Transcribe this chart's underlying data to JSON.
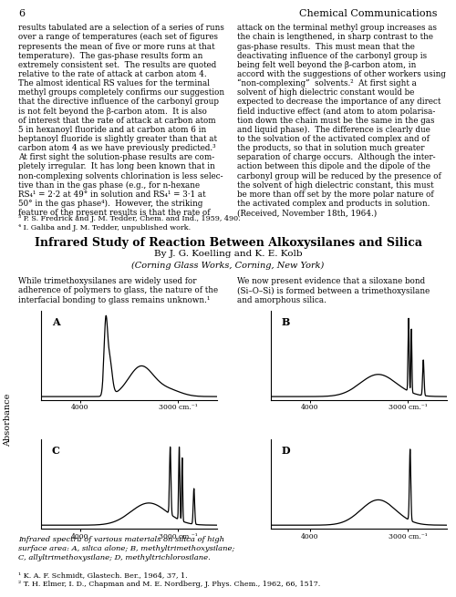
{
  "page_number": "6",
  "journal_header": "Chemical Communications",
  "body_text_left": [
    "results tabulated are a selection of a series of runs",
    "over a range of temperatures (each set of figures",
    "represents the mean of five or more runs at that",
    "temperature).  The gas-phase results form an",
    "extremely consistent set.  The results are quoted",
    "relative to the rate of attack at carbon atom 4.",
    "The almost identical RS values for the terminal",
    "methyl groups completely confirms our suggestion",
    "that the directive influence of the carbonyl group",
    "is not felt beyond the β-carbon atom.  It is also",
    "of interest that the rate of attack at carbon atom",
    "5 in hexanoyl fluoride and at carbon atom 6 in",
    "heptanoyl fluoride is slightly greater than that at",
    "carbon atom 4 as we have previously predicted.³",
    "At first sight the solution-phase results are com-",
    "pletely irregular.  It has long been known that in",
    "non-complexing solvents chlorination is less selec-",
    "tive than in the gas phase (e.g., for n-hexane",
    "RS₄¹ = 2·2 at 49° in solution and RS₄¹ = 3·1 at",
    "50° in the gas phase⁴).  However, the striking",
    "feature of the present results is that the rate of"
  ],
  "body_text_right": [
    "attack on the terminal methyl group increases as",
    "the chain is lengthened, in sharp contrast to the",
    "gas-phase results.  This must mean that the",
    "deactivating influence of the carbonyl group is",
    "being felt well beyond the β-carbon atom, in",
    "accord with the suggestions of other workers using",
    "“non-complexing”  solvents.²  At first sight a",
    "solvent of high dielectric constant would be",
    "expected to decrease the importance of any direct",
    "field inductive effect (and atom to atom polarisa-",
    "tion down the chain must be the same in the gas",
    "and liquid phase).  The difference is clearly due",
    "to the solvation of the activated complex and of",
    "the products, so that in solution much greater",
    "separation of charge occurs.  Although the inter-",
    "action between this dipole and the dipole of the",
    "carbonyl group will be reduced by the presence of",
    "the solvent of high dielectric constant, this must",
    "be more than off set by the more polar nature of",
    "the activated complex and products in solution.",
    "(Received, November 18th, 1964.)"
  ],
  "footnotes_top": [
    "³ P. S. Fredrick and J. M. Tedder, Chem. and Ind., 1959, 490.",
    "⁴ I. Galiba and J. M. Tedder, unpublished work."
  ],
  "fig_title": "Infrared Study of Reaction Between Alkoxysilanes and Silica",
  "fig_authors": "By J. G. Koelling and K. E. Kolb",
  "fig_affiliation": "(Corning Glass Works, Corning, New York)",
  "intro_text_left": [
    "While trimethoxysilanes are widely used for",
    "adherence of polymers to glass, the nature of the",
    "interfacial bonding to glass remains unknown.¹"
  ],
  "intro_text_right": [
    "We now present evidence that a siloxane bond",
    "(Si–O–Si) is formed between a trimethoxysilane",
    "and amorphous silica."
  ],
  "panel_labels": [
    "A",
    "B",
    "C",
    "D"
  ],
  "xlim": [
    4400,
    2600
  ],
  "ylabel": "Absorbance",
  "caption": "Infrared spectra of various materials on silica of high surface area: A, silica alone; B, methyltrimethoxysilane; C, allyltrimethoxysilane; D, methyltrichlorosilane.",
  "footnotes_bottom": [
    "¹ K. A. F. Schmidt, Glastech. Ber., 1964, 37, 1.",
    "² T. H. Elmer, I. D., Chapman and M. E. Nordberg, J. Phys. Chem., 1962, 66, 1517."
  ],
  "background_color": "#ffffff",
  "line_color": "#000000"
}
